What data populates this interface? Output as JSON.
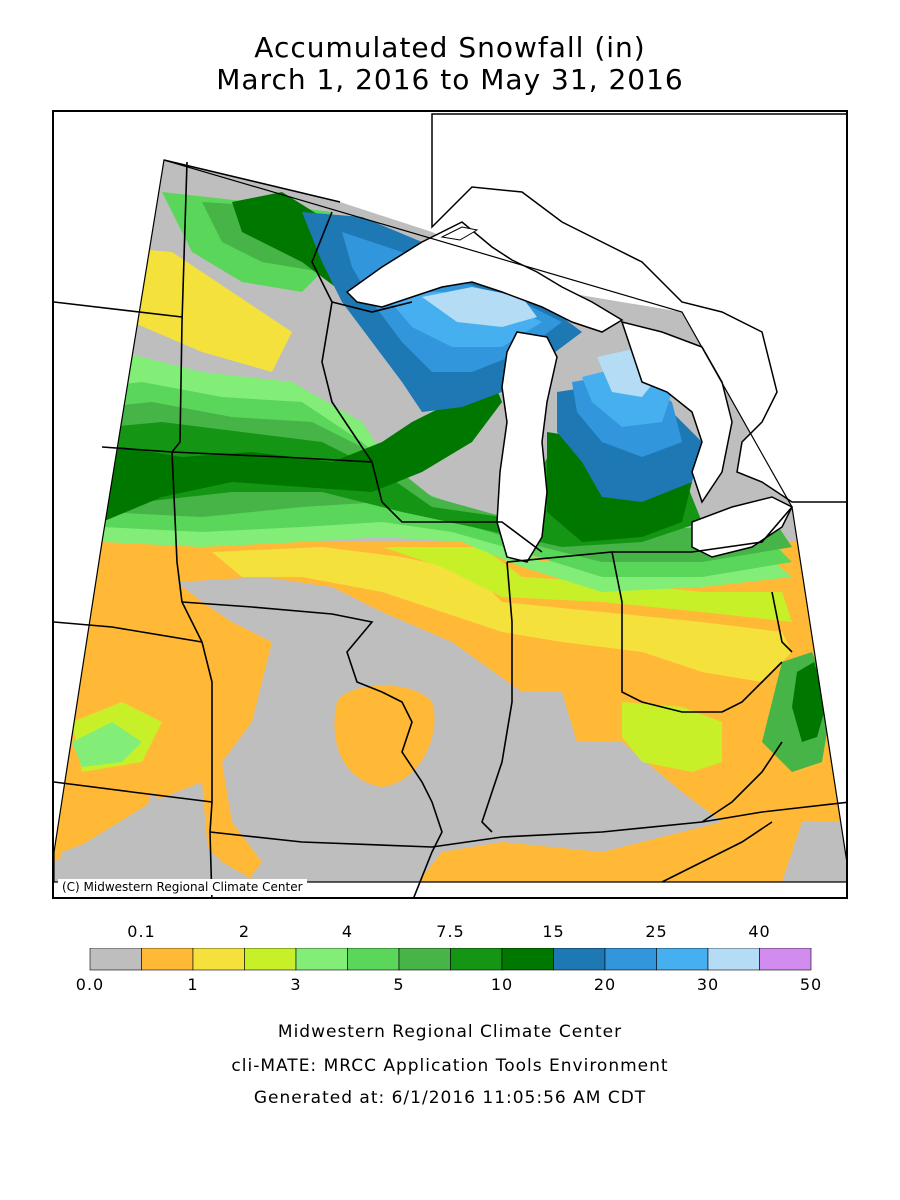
{
  "title": {
    "line1": "Accumulated Snowfall (in)",
    "line2": "March 1, 2016 to May 31, 2016"
  },
  "map": {
    "copyright": "(C) Midwestern Regional Climate Center",
    "colors": {
      "none": "#bebebe",
      "c0_1": "#ffb937",
      "c1_2": "#f5e13c",
      "c2_3": "#c8f028",
      "c3_4": "#82ee78",
      "c4_5": "#5ad75a",
      "c5_7": "#46b446",
      "c7_10": "#149614",
      "c10_15": "#007800",
      "c15_20": "#1e78b4",
      "c20_25": "#3296dc",
      "c25_30": "#46aff0",
      "c30_40": "#b4dcf5",
      "c40_50": "#d28cf0"
    }
  },
  "legend": {
    "upper_labels": [
      "0.1",
      "2",
      "4",
      "7.5",
      "15",
      "25",
      "40"
    ],
    "lower_labels": [
      "0.0",
      "1",
      "3",
      "5",
      "10",
      "20",
      "30",
      "50"
    ],
    "bins": [
      {
        "from": 0.0,
        "to": 0.1,
        "color": "#bebebe"
      },
      {
        "from": 0.1,
        "to": 1,
        "color": "#ffb937"
      },
      {
        "from": 1,
        "to": 2,
        "color": "#f5e13c"
      },
      {
        "from": 2,
        "to": 3,
        "color": "#c8f028"
      },
      {
        "from": 3,
        "to": 4,
        "color": "#82ee78"
      },
      {
        "from": 4,
        "to": 5,
        "color": "#5ad75a"
      },
      {
        "from": 5,
        "to": 7.5,
        "color": "#46b446"
      },
      {
        "from": 7.5,
        "to": 10,
        "color": "#149614"
      },
      {
        "from": 10,
        "to": 15,
        "color": "#007800"
      },
      {
        "from": 15,
        "to": 20,
        "color": "#1e78b4"
      },
      {
        "from": 20,
        "to": 25,
        "color": "#3296dc"
      },
      {
        "from": 25,
        "to": 30,
        "color": "#46aff0"
      },
      {
        "from": 30,
        "to": 40,
        "color": "#b4dcf5"
      },
      {
        "from": 40,
        "to": 50,
        "color": "#d28cf0"
      }
    ]
  },
  "footer": {
    "line1": "Midwestern Regional Climate Center",
    "line2": "cli-MATE: MRCC Application Tools Environment",
    "line3": "Generated at: 6/1/2016 11:05:56 AM CDT"
  }
}
